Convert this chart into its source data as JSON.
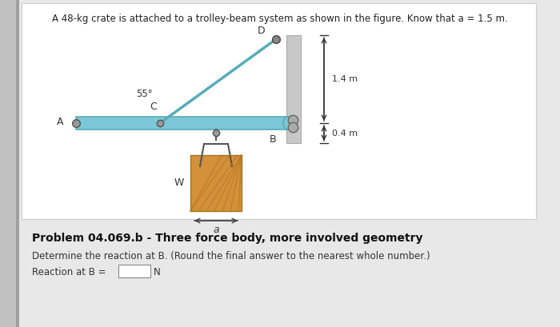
{
  "title_text": "A 48-kg crate is attached to a trolley-beam system as shown in the figure. Know that a = 1.5 m.",
  "problem_label": "Problem 04.069.b - Three force body, more involved geometry",
  "question_text": "Determine the reaction at B. (Round the final answer to the nearest whole number.)",
  "answer_label": "Reaction at B = ",
  "answer_unit": "N",
  "bg_color": "#e8e8e8",
  "box_bg": "#ffffff",
  "beam_color": "#7dc8d8",
  "beam_edge": "#5aabb8",
  "cable_color": "#5aabb8",
  "vbar_color": "#c8c8c8",
  "vbar_edge": "#aaaaaa",
  "crate_fill": "#d4913a",
  "crate_hatch": "#b87828",
  "angle_label": "55°",
  "dim1": "1.4 m",
  "dim2": "0.4 m",
  "label_a": "a",
  "label_W": "W",
  "label_A": "A",
  "label_C": "C",
  "label_D": "D",
  "label_B": "B",
  "sidebar_color": "#c0c0c0",
  "sidebar_dark": "#a0a0a0"
}
